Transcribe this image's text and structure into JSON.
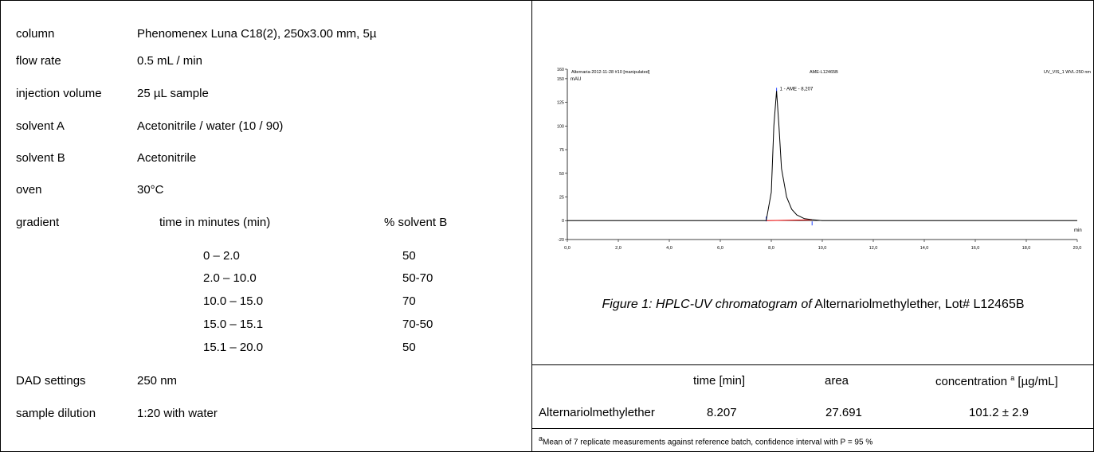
{
  "params": {
    "column": {
      "label": "column",
      "value": "Phenomenex Luna C18(2), 250x3.00 mm, 5µ"
    },
    "flow_rate": {
      "label": "flow rate",
      "value": "0.5 mL / min"
    },
    "injection_volume": {
      "label": "injection volume",
      "value": "25 µL sample"
    },
    "solvent_a": {
      "label": "solvent A",
      "value": "Acetonitrile / water (10 / 90)"
    },
    "solvent_b": {
      "label": "solvent B",
      "value": "Acetonitrile"
    },
    "oven": {
      "label": "oven",
      "value": "30°C"
    },
    "gradient": {
      "label": "gradient",
      "col_time": "time in minutes (min)",
      "col_pct": "% solvent B",
      "rows": [
        {
          "time": "0 – 2.0",
          "pct": "50"
        },
        {
          "time": "2.0 – 10.0",
          "pct": "50-70"
        },
        {
          "time": "10.0 – 15.0",
          "pct": "70"
        },
        {
          "time": "15.0 – 15.1",
          "pct": "70-50"
        },
        {
          "time": "15.1 – 20.0",
          "pct": "50"
        }
      ]
    },
    "dad": {
      "label": "DAD settings",
      "value": "250 nm"
    },
    "dilution": {
      "label": "sample dilution",
      "value": "1:20 with water"
    }
  },
  "chromatogram": {
    "header_left": "Alternaria-2012-11-28 #10 [manipulated]",
    "header_mid": "AME-L12465B",
    "header_right": "UV_VIS_1 WVL:250 nm",
    "y_unit": "mAU",
    "x_unit": "min",
    "peak_label": "1 - AME - 8,207",
    "y_ticks": [
      "160",
      "150",
      "125",
      "100",
      "75",
      "50",
      "25",
      "0",
      "-20"
    ],
    "x_ticks": [
      "0,0",
      "2,0",
      "4,0",
      "6,0",
      "8,0",
      "10,0",
      "12,0",
      "14,0",
      "16,0",
      "18,0",
      "20,0"
    ]
  },
  "chart_data": {
    "type": "line",
    "xlabel": "min",
    "ylabel": "mAU",
    "xlim": [
      0,
      20
    ],
    "ylim": [
      -20,
      160
    ],
    "series": [
      {
        "name": "UV_VIS_1 WVL:250 nm",
        "x": [
          0,
          7.8,
          8.0,
          8.1,
          8.207,
          8.3,
          8.4,
          8.6,
          8.8,
          9.0,
          9.3,
          9.6,
          10.0,
          20.0
        ],
        "y": [
          0,
          0,
          30,
          100,
          137,
          100,
          55,
          25,
          12,
          6,
          2,
          1,
          0,
          0
        ]
      }
    ],
    "annotations": [
      "1 - AME - 8,207"
    ]
  },
  "caption": {
    "prefix": "Figure 1: HPLC-UV chromatogram of",
    "rest": " Alternariolmethylether, Lot# L12465B"
  },
  "results": {
    "headers": {
      "time": "time [min]",
      "area": "area",
      "conc": "concentration",
      "conc_sup": "a",
      "conc_unit": " [µg/mL]"
    },
    "row": {
      "name": "Alternariolmethylether",
      "time": "8.207",
      "area": "27.691",
      "conc": "101.2 ± 2.9"
    },
    "footnote_sup": "a",
    "footnote": "Mean of 7 replicate measurements against reference batch, confidence interval with P = 95 %"
  }
}
